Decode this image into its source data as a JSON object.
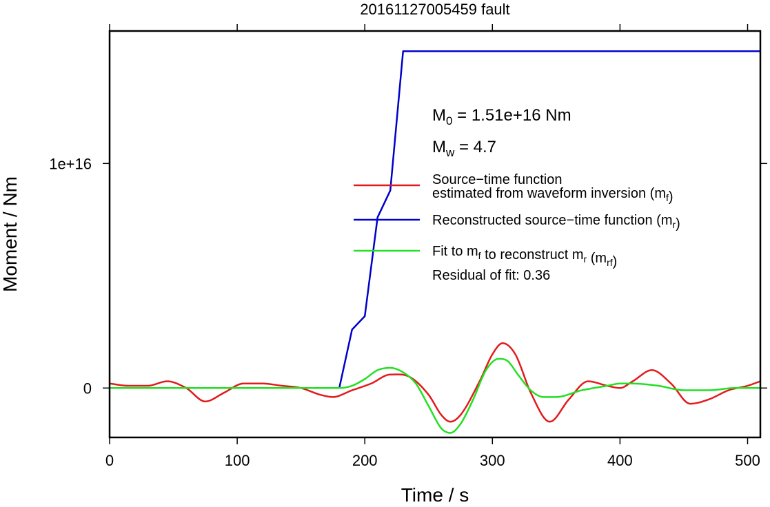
{
  "chart_data": {
    "type": "line",
    "title": "20161127005459 fault",
    "xlabel": "Time / s",
    "ylabel": "Moment / Nm",
    "xlim": [
      0,
      510
    ],
    "ylim": [
      -2200000000000000.0,
      1.59e+16
    ],
    "x_ticks": [
      0,
      100,
      200,
      300,
      400,
      500
    ],
    "x_tick_labels": [
      "0",
      "100",
      "200",
      "300",
      "400",
      "500"
    ],
    "y_ticks": [
      0,
      1e+16
    ],
    "y_tick_labels": [
      "0",
      "1e+16"
    ],
    "grid": false,
    "legend_position": "right",
    "annotations": {
      "m0_symbol": "M",
      "m0_sub": "0",
      "m0_text": " = 1.51e+16 Nm",
      "mw_symbol": "M",
      "mw_sub": "w",
      "mw_text": " = 4.7",
      "residual": "Residual of fit: 0.36"
    },
    "series": [
      {
        "name": "Source−time function estimated from waveform inversion (mf)",
        "legend_lines": [
          [
            {
              "t": "Source−time function"
            }
          ],
          [
            {
              "t": "estimated from waveform inversion (m"
            },
            {
              "t": "f",
              "sub": true
            },
            {
              "t": ")"
            }
          ]
        ],
        "color": "#e31a1c",
        "x": [
          0,
          15,
          30,
          45,
          60,
          75,
          90,
          105,
          120,
          135,
          150,
          165,
          175,
          190,
          205,
          220,
          235,
          250,
          260,
          267,
          275,
          290,
          300,
          308,
          318,
          330,
          345,
          360,
          375,
          390,
          400,
          410,
          425,
          440,
          455,
          470,
          485,
          500,
          510
        ],
        "y": [
          200000000000000.0,
          100000000000000.0,
          100000000000000.0,
          300000000000000.0,
          0,
          -600000000000000.0,
          -200000000000000.0,
          200000000000000.0,
          200000000000000.0,
          100000000000000.0,
          0,
          -300000000000000.0,
          -400000000000000.0,
          -100000000000000.0,
          200000000000000.0,
          600000000000000.0,
          500000000000000.0,
          -300000000000000.0,
          -1200000000000000.0,
          -1500000000000000.0,
          -1200000000000000.0,
          300000000000000.0,
          1500000000000000.0,
          2000000000000000.0,
          1500000000000000.0,
          -200000000000000.0,
          -1500000000000000.0,
          -500000000000000.0,
          300000000000000.0,
          100000000000000.0,
          0,
          300000000000000.0,
          800000000000000.0,
          200000000000000.0,
          -700000000000000.0,
          -500000000000000.0,
          -100000000000000.0,
          100000000000000.0,
          300000000000000.0
        ]
      },
      {
        "name": "Reconstructed source−time function (mr)",
        "legend_lines": [
          [
            {
              "t": "Reconstructed source−time function (m"
            },
            {
              "t": "r",
              "sub": true
            },
            {
              "t": ")"
            }
          ]
        ],
        "color": "#0000cc",
        "x": [
          0,
          180,
          190,
          200,
          210,
          220,
          230,
          510
        ],
        "y": [
          0,
          0,
          2600000000000000.0,
          3200000000000000.0,
          7600000000000000.0,
          8800000000000000.0,
          1.5e+16,
          1.5e+16
        ]
      },
      {
        "name": "Fit to mf to reconstruct mr (mrf)",
        "legend_lines": [
          [
            {
              "t": "Fit to m"
            },
            {
              "t": "f",
              "sub": true
            },
            {
              "t": " to reconstruct m"
            },
            {
              "t": "r",
              "sub": true
            },
            {
              "t": " (m"
            },
            {
              "t": "rf",
              "sub": true
            },
            {
              "t": ")"
            }
          ]
        ],
        "color": "#22e022",
        "x": [
          0,
          180,
          190,
          200,
          210,
          220,
          230,
          240,
          250,
          260,
          267,
          275,
          285,
          295,
          305,
          312,
          320,
          330,
          340,
          350,
          370,
          390,
          400,
          410,
          430,
          450,
          470,
          490,
          510
        ],
        "y": [
          0,
          0,
          100000000000000.0,
          400000000000000.0,
          800000000000000.0,
          900000000000000.0,
          700000000000000.0,
          200000000000000.0,
          -800000000000000.0,
          -1800000000000000.0,
          -2000000000000000.0,
          -1600000000000000.0,
          -500000000000000.0,
          800000000000000.0,
          1300000000000000.0,
          1200000000000000.0,
          600000000000000.0,
          -100000000000000.0,
          -400000000000000.0,
          -400000000000000.0,
          -100000000000000.0,
          100000000000000.0,
          200000000000000.0,
          200000000000000.0,
          100000000000000.0,
          -100000000000000.0,
          -100000000000000.0,
          0,
          0
        ]
      }
    ]
  }
}
